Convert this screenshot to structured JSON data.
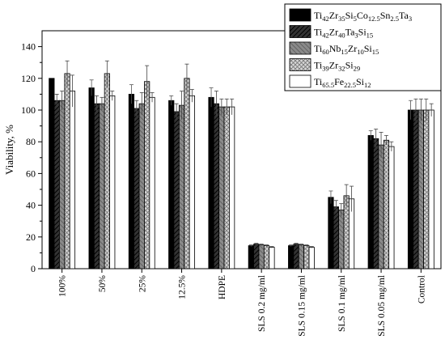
{
  "chart_data": {
    "type": "bar",
    "ylabel": "Viability, %",
    "xlabel": "",
    "ylim": [
      0,
      150
    ],
    "yticks": [
      0,
      20,
      40,
      60,
      80,
      100,
      120,
      140
    ],
    "grid": false,
    "legend_placement": "top-right",
    "categories": [
      "100%",
      "50%",
      "25%",
      "12.5%",
      "HDPE",
      "SLS 0.2 mg/ml",
      "SLS 0.15 mg/ml",
      "SLS 0.1 mg/ml",
      "SLS 0.05 mg/ml",
      "Control"
    ],
    "series": [
      {
        "name": "Ti42Zr35Si5Co12.5Sn2.5Ta3",
        "label_parts": [
          [
            "Ti",
            ""
          ],
          [
            "42",
            "sub"
          ],
          [
            "Zr",
            ""
          ],
          [
            "35",
            "sub"
          ],
          [
            "Si",
            ""
          ],
          [
            "5",
            "sub"
          ],
          [
            "Co",
            ""
          ],
          [
            "12.5",
            "sub"
          ],
          [
            "Sn",
            ""
          ],
          [
            "2.5",
            "sub"
          ],
          [
            "Ta",
            ""
          ],
          [
            "3",
            "sub"
          ]
        ],
        "pattern": "solid-black",
        "values": [
          120,
          114,
          110,
          106,
          108,
          14.5,
          14.5,
          45,
          84,
          100
        ],
        "errors": [
          0,
          5,
          6,
          3,
          6,
          0.5,
          0.5,
          4,
          3,
          6
        ]
      },
      {
        "name": "Ti42Zr40Ta3Si15",
        "label_parts": [
          [
            "Ti",
            ""
          ],
          [
            "42",
            "sub"
          ],
          [
            "Zr",
            ""
          ],
          [
            "40",
            "sub"
          ],
          [
            "Ta",
            ""
          ],
          [
            "3",
            "sub"
          ],
          [
            "Si",
            ""
          ],
          [
            "15",
            "sub"
          ]
        ],
        "pattern": "dark-diagonal",
        "values": [
          106,
          104,
          101,
          99,
          104,
          15.5,
          15.5,
          39,
          82,
          100
        ],
        "errors": [
          4,
          5,
          5,
          5,
          8,
          0.5,
          0.5,
          4,
          6,
          7
        ]
      },
      {
        "name": "Ti60Nb15Zr10Si15",
        "label_parts": [
          [
            "Ti",
            ""
          ],
          [
            "60",
            "sub"
          ],
          [
            "Nb",
            ""
          ],
          [
            "15",
            "sub"
          ],
          [
            "Zr",
            ""
          ],
          [
            "10",
            "sub"
          ],
          [
            "Si",
            ""
          ],
          [
            "15",
            "sub"
          ]
        ],
        "pattern": "grey-diagonal",
        "values": [
          106,
          104,
          104,
          103,
          102,
          15,
          15,
          37,
          78,
          100
        ],
        "errors": [
          6,
          4,
          7,
          9,
          5,
          0.5,
          0.5,
          4,
          8,
          7
        ]
      },
      {
        "name": "Ti39Zr32Si29",
        "label_parts": [
          [
            "Ti",
            ""
          ],
          [
            "39",
            "sub"
          ],
          [
            "Zr",
            ""
          ],
          [
            "32",
            "sub"
          ],
          [
            "Si",
            ""
          ],
          [
            "29",
            "sub"
          ]
        ],
        "pattern": "crosshatch",
        "values": [
          123,
          123,
          118,
          120,
          102,
          14.5,
          14.5,
          46,
          81,
          100
        ],
        "errors": [
          8,
          8,
          10,
          9,
          5,
          0.5,
          0.5,
          7,
          3,
          7
        ]
      },
      {
        "name": "Ti65.5Fe22.5Si12",
        "label_parts": [
          [
            "Ti",
            ""
          ],
          [
            "65.5",
            "sub"
          ],
          [
            "Fe",
            ""
          ],
          [
            "22.5",
            "sub"
          ],
          [
            "Si",
            ""
          ],
          [
            "12",
            "sub"
          ]
        ],
        "pattern": "white",
        "values": [
          112,
          109,
          108,
          109,
          102,
          13.5,
          13.5,
          44,
          77,
          100
        ],
        "errors": [
          10,
          3,
          3,
          4,
          5,
          0.5,
          0.5,
          8,
          3,
          4
        ]
      }
    ]
  }
}
